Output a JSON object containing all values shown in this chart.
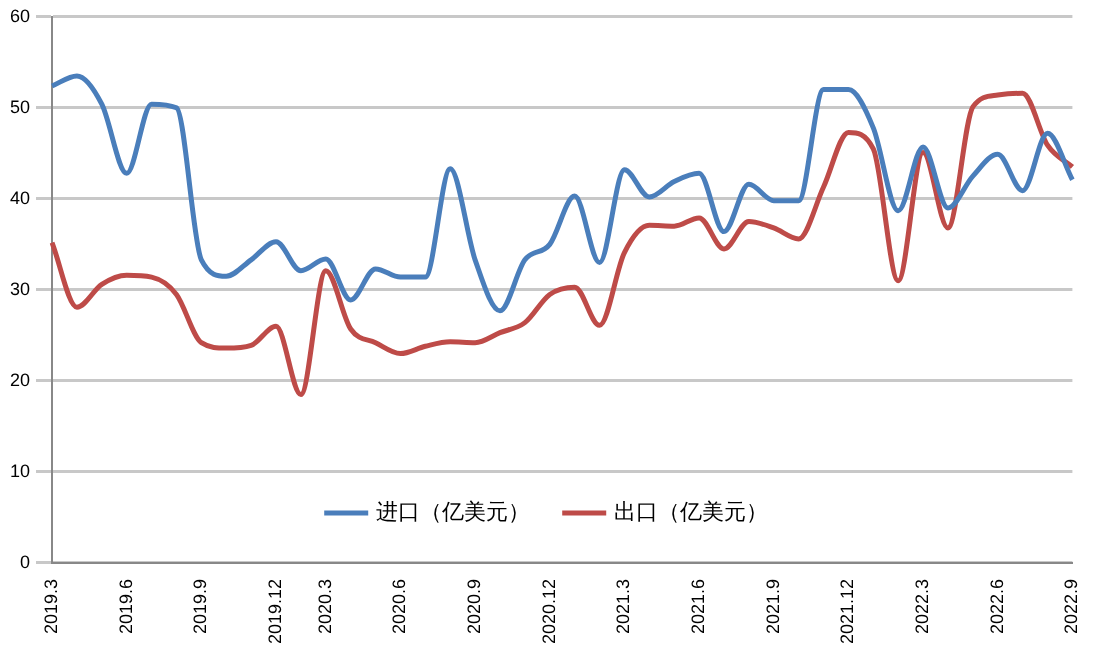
{
  "chart_data": {
    "type": "line",
    "categories": [
      "2019.3",
      null,
      null,
      "2019.6",
      null,
      null,
      "2019.9",
      null,
      null,
      "2019.12",
      null,
      "2020.3",
      null,
      null,
      "2020.6",
      null,
      null,
      "2020.9",
      null,
      null,
      "2020.12",
      null,
      null,
      "2021.3",
      null,
      null,
      "2021.6",
      null,
      null,
      "2021.9",
      null,
      null,
      "2021.12",
      null,
      null,
      "2022.3",
      null,
      null,
      "2022.6",
      null,
      null,
      "2022.9"
    ],
    "series": [
      {
        "name": "进口（亿美元）",
        "color": "#4a7ebb",
        "values": [
          52.4,
          53.5,
          50.4,
          42.8,
          50.4,
          50,
          33.3,
          31.5,
          33.3,
          35.3,
          32.1,
          33.4,
          28.9,
          32.3,
          31.4,
          31.4,
          43.3,
          33.3,
          27.7,
          33.3,
          35,
          40.3,
          33,
          43.2,
          40.2,
          41.9,
          42.8,
          36.4,
          41.6,
          39.8,
          39.8,
          52,
          52,
          47.8,
          38.7,
          45.7,
          39,
          42.5,
          44.9,
          40.9,
          47.2,
          42.1
        ]
      },
      {
        "name": "出口（亿美元）",
        "color": "#be4b48",
        "values": [
          35.2,
          28.1,
          30.6,
          31.6,
          31.4,
          29.5,
          24.2,
          23.6,
          23.9,
          26,
          18.5,
          32.1,
          25.7,
          24.2,
          23,
          23.8,
          24.3,
          24.2,
          25.3,
          26.4,
          29.5,
          30.3,
          26.1,
          34.1,
          37.1,
          37,
          37.9,
          34.5,
          37.5,
          36.8,
          35.6,
          41.3,
          47.3,
          45.5,
          31,
          45.1,
          36.8,
          50.1,
          51.4,
          51.6,
          45.9,
          43.5
        ]
      }
    ],
    "ylim": [
      0,
      60
    ],
    "yticks": [
      0,
      10,
      20,
      30,
      40,
      50,
      60
    ],
    "grid": "y",
    "legend": "bottom",
    "marker": "none",
    "line_style": "solid"
  }
}
